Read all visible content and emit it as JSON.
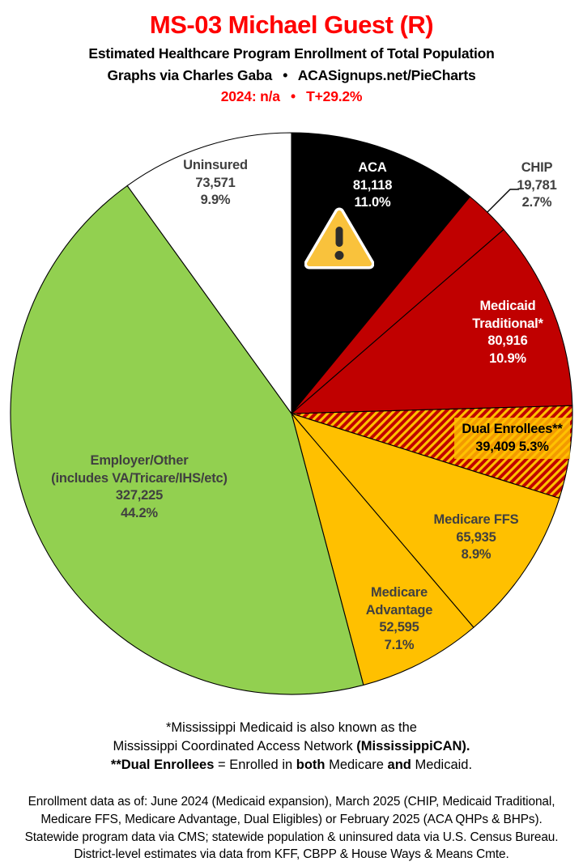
{
  "header": {
    "title": "MS-03 Michael Guest (R)",
    "subtitle": "Estimated Healthcare Program Enrollment of Total Population",
    "byline": "Graphs via Charles Gaba  •  ACASignups.net/PieCharts",
    "stats_line": "2024: n/a  •  T+29.2%",
    "title_color": "#FF0000",
    "stats_color": "#FF0000"
  },
  "chart_data": {
    "type": "pie",
    "title": "MS-03 Michael Guest (R)",
    "subtitle": "Estimated Healthcare Program Enrollment of Total Population",
    "start_angle_deg": 0,
    "direction": "clockwise",
    "legend": "none",
    "slices": [
      {
        "id": "aca",
        "name_lines": [
          "ACA"
        ],
        "value": 81118,
        "value_label": "81,118",
        "pct": 11.0,
        "pct_label": "11.0%",
        "color": "#000000",
        "label_color": "#FFFFFF",
        "annotation": "warning-triangle-icon"
      },
      {
        "id": "chip",
        "name_lines": [
          "CHIP"
        ],
        "value": 19781,
        "value_label": "19,781",
        "pct": 2.7,
        "pct_label": "2.7%",
        "color": "#C00000",
        "label_color": "#404040",
        "label_outside": true
      },
      {
        "id": "medicaid-traditional",
        "name_lines": [
          "Medicaid",
          "Traditional*"
        ],
        "value": 80916,
        "value_label": "80,916",
        "pct": 10.9,
        "pct_label": "10.9%",
        "color": "#C00000",
        "label_color": "#FFFFFF"
      },
      {
        "id": "dual-enrollees",
        "name_lines": [
          "Dual Enrollees**"
        ],
        "value": 39409,
        "value_label": "39,409",
        "pct": 5.3,
        "pct_label": "5.3%",
        "hatch": true,
        "hatch_colors": [
          "#C00000",
          "#FFC000"
        ],
        "label_color": "#000000",
        "label_highlight": "rgba(255,192,0,0.8)"
      },
      {
        "id": "medicare-ffs",
        "name_lines": [
          "Medicare FFS"
        ],
        "value": 65935,
        "value_label": "65,935",
        "pct": 8.9,
        "pct_label": "8.9%",
        "color": "#FFC000",
        "label_color": "#404040"
      },
      {
        "id": "medicare-advantage",
        "name_lines": [
          "Medicare",
          "Advantage"
        ],
        "value": 52595,
        "value_label": "52,595",
        "pct": 7.1,
        "pct_label": "7.1%",
        "color": "#FFC000",
        "label_color": "#404040"
      },
      {
        "id": "employer-other",
        "name_lines": [
          "Employer/Other",
          "(includes VA/Tricare/IHS/etc)"
        ],
        "value": 327225,
        "value_label": "327,225",
        "pct": 44.2,
        "pct_label": "44.2%",
        "color": "#92D050",
        "label_color": "#404040"
      },
      {
        "id": "uninsured",
        "name_lines": [
          "Uninsured"
        ],
        "value": 73571,
        "value_label": "73,571",
        "pct": 9.9,
        "pct_label": "9.9%",
        "color": "#FFFFFF",
        "label_color": "#404040"
      }
    ]
  },
  "icons": {
    "warning": {
      "fill": "#F9C23C",
      "mark": "#2E2D2B",
      "border": "#FFFFFF"
    }
  },
  "notes": {
    "line1": "*Mississippi Medicaid is also known as the",
    "line2_normal": "Mississippi Coordinated Access Network ",
    "line2_bold": "(MississippiCAN).",
    "line3_bold1": "**Dual Enrollees",
    "line3_normal1": " = Enrolled in ",
    "line3_bold2": "both",
    "line3_normal2": " Medicare ",
    "line3_bold3": "and",
    "line3_normal3": " Medicaid."
  },
  "footer": {
    "lines": [
      "Enrollment data as of: June 2024 (Medicaid expansion), March 2025 (CHIP, Medicaid Traditional,",
      "Medicare FFS, Medicare Advantage, Dual Eligibles) or February 2025 (ACA QHPs & BHPs).",
      "Statewide program data via CMS; statewide population & uninsured data via U.S. Census Bureau.",
      "District-level estimates via data from KFF, CBPP & House Ways & Means Cmte."
    ]
  }
}
